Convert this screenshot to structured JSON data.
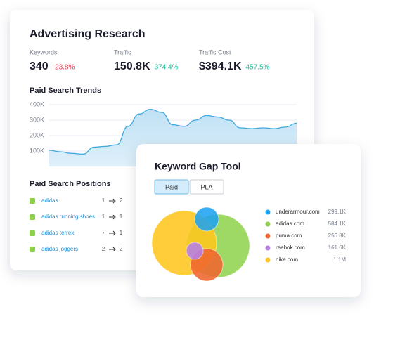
{
  "advertising_research": {
    "title": "Advertising Research",
    "metrics": [
      {
        "label": "Keywords",
        "value": "340",
        "change": "-23.8%",
        "change_color": "#e5364a"
      },
      {
        "label": "Traffic",
        "value": "150.8K",
        "change": "374.4%",
        "change_color": "#1bbf9a"
      },
      {
        "label": "Traffic Cost",
        "value": "$394.1K",
        "change": "457.5%",
        "change_color": "#1bbf9a"
      }
    ],
    "trends": {
      "type": "area",
      "title": "Paid Search Trends",
      "color": "#3fa9de",
      "ylim": [
        0,
        400000
      ],
      "yticks": [
        {
          "value": 400000,
          "label": "400K"
        },
        {
          "value": 300000,
          "label": "300K"
        },
        {
          "value": 200000,
          "label": "200K"
        },
        {
          "value": 100000,
          "label": "100K"
        }
      ],
      "grid": true,
      "values": [
        105000,
        95000,
        85000,
        80000,
        125000,
        130000,
        140000,
        260000,
        340000,
        370000,
        350000,
        270000,
        260000,
        300000,
        330000,
        320000,
        300000,
        250000,
        245000,
        250000,
        245000,
        255000,
        280000
      ]
    },
    "positions": {
      "title": "Paid Search Positions",
      "rows": [
        {
          "keyword": "adidas",
          "from": "1",
          "to": "2"
        },
        {
          "keyword": "adidas running shoes",
          "from": "1",
          "to": "1"
        },
        {
          "keyword": "adidas terrex",
          "from": "•",
          "to": "1"
        },
        {
          "keyword": "adidas joggers",
          "from": "2",
          "to": "2"
        }
      ]
    }
  },
  "keyword_gap": {
    "title": "Keyword Gap Tool",
    "tabs": [
      "Paid",
      "PLA"
    ],
    "domains": [
      {
        "name": "underarmour.com",
        "value": "299.1K",
        "color": "#1fa3f0"
      },
      {
        "name": "adidas.com",
        "value": "584.1K",
        "color": "#8dd14a"
      },
      {
        "name": "puma.com",
        "value": "256.8K",
        "color": "#f0652f"
      },
      {
        "name": "reebok.com",
        "value": "161.6K",
        "color": "#b57ee8"
      },
      {
        "name": "nike.com",
        "value": "1.1M",
        "color": "#ffc61e"
      }
    ]
  }
}
